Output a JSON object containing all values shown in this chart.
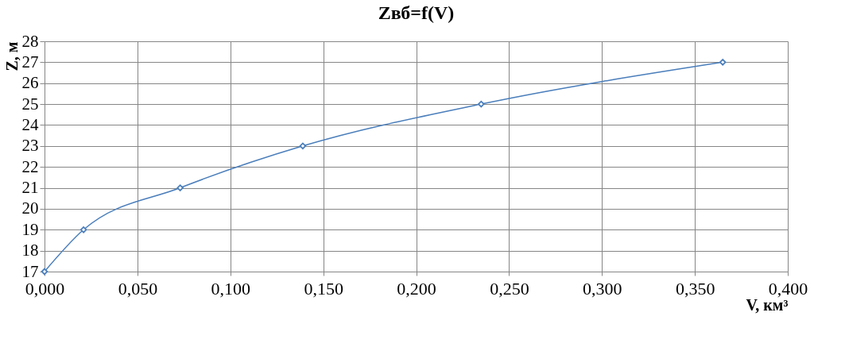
{
  "chart_data": {
    "type": "line",
    "title": "Zвб=f(V)",
    "xlabel": "V, км³",
    "ylabel": "Z, м",
    "x": [
      0.0,
      0.021,
      0.073,
      0.139,
      0.235,
      0.365
    ],
    "series": [
      {
        "color": "#4a7ebb",
        "values": [
          17,
          19,
          21,
          23,
          25,
          27
        ]
      }
    ],
    "xlim": [
      0,
      0.4
    ],
    "xticks": [
      {
        "value": 0,
        "label": "0,000"
      },
      {
        "value": 0.05,
        "label": "0,050"
      },
      {
        "value": 0.1,
        "label": "0,100"
      },
      {
        "value": 0.15,
        "label": "0,150"
      },
      {
        "value": 0.2,
        "label": "0,200"
      },
      {
        "value": 0.25,
        "label": "0,250"
      },
      {
        "value": 0.3,
        "label": "0,300"
      },
      {
        "value": 0.35,
        "label": "0,350"
      },
      {
        "value": 0.4,
        "label": "0,400"
      }
    ],
    "ylim": [
      17,
      28
    ],
    "yticks": [
      17,
      18,
      19,
      20,
      21,
      22,
      23,
      24,
      25,
      26,
      27,
      28
    ],
    "grid": true,
    "legend": false,
    "marker": "diamond",
    "line_style": "solid"
  }
}
